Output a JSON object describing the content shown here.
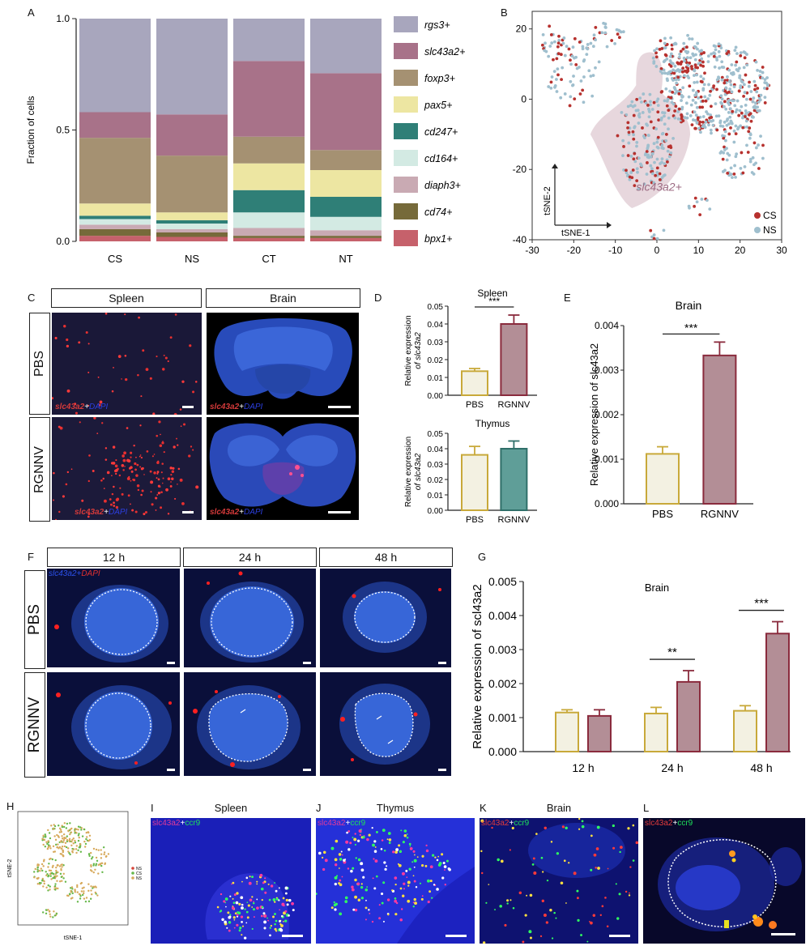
{
  "panel_labels": [
    "A",
    "B",
    "C",
    "D",
    "E",
    "F",
    "G",
    "H",
    "I",
    "J",
    "K",
    "L"
  ],
  "colors": {
    "rgs3": "#a8a6bd",
    "slc43a2": "#a87289",
    "foxp3": "#a59172",
    "pax5": "#ede6a2",
    "cd247": "#2f7f77",
    "cd164": "#d3eae3",
    "diaph3": "#c9aab3",
    "cd74": "#766a3a",
    "bpx1": "#c6616b",
    "cs": "#b7312e",
    "ns": "#9fbfce",
    "pbs_bar": "#c8a93a",
    "rgnnv_bar": "#8a2b3d",
    "pbs_fill": "#f3f1e2",
    "rgnnv_fill": "#b38e96",
    "thymus_rgnnv_fill": "#5f9e98",
    "thymus_rgnnv_edge": "#2f6f69"
  },
  "chart_data": [
    {
      "panel": "A",
      "type": "bar",
      "stacked": true,
      "categories": [
        "CS",
        "NS",
        "CT",
        "NT"
      ],
      "ylabel": "Fraction of cells",
      "ylim": [
        0,
        1.0
      ],
      "yticks": [
        "0.0",
        "0.5",
        "1.0"
      ],
      "series": [
        {
          "name": "bpx1+",
          "values": [
            0.025,
            0.02,
            0.015,
            0.015
          ]
        },
        {
          "name": "cd74+",
          "values": [
            0.03,
            0.02,
            0.01,
            0.01
          ]
        },
        {
          "name": "diaph3+",
          "values": [
            0.02,
            0.015,
            0.035,
            0.025
          ]
        },
        {
          "name": "cd164+",
          "values": [
            0.025,
            0.025,
            0.07,
            0.06
          ]
        },
        {
          "name": "cd247+",
          "values": [
            0.015,
            0.015,
            0.1,
            0.09
          ]
        },
        {
          "name": "pax5+",
          "values": [
            0.055,
            0.035,
            0.12,
            0.12
          ]
        },
        {
          "name": "foxp3+",
          "values": [
            0.295,
            0.255,
            0.12,
            0.09
          ]
        },
        {
          "name": "slc43a2+",
          "values": [
            0.115,
            0.185,
            0.34,
            0.345
          ]
        },
        {
          "name": "rgs3+",
          "values": [
            0.42,
            0.43,
            0.19,
            0.245
          ]
        }
      ],
      "legend": [
        "rgs3+",
        "slc43a2+",
        "foxp3+",
        "pax5+",
        "cd247+",
        "cd164+",
        "diaph3+",
        "cd74+",
        "bpx1+"
      ]
    },
    {
      "panel": "B",
      "type": "scatter",
      "xlim": [
        -30,
        30
      ],
      "ylim": [
        -40,
        25
      ],
      "xticks": [
        "-30",
        "-20",
        "-10",
        "0",
        "10",
        "20",
        "30"
      ],
      "yticks": [
        "20",
        "0",
        "-20",
        "-40"
      ],
      "axis_arrows": [
        "tSNE-1",
        "tSNE-2"
      ],
      "cluster_label": "slc43a2+",
      "series": [
        {
          "name": "CS"
        },
        {
          "name": "NS"
        }
      ]
    },
    {
      "panel": "D-spleen",
      "type": "bar",
      "title": "Spleen",
      "ylabel_line1": "Relative expression",
      "ylabel_line2": "of slc43a2",
      "categories": [
        "PBS",
        "RGNNV"
      ],
      "values": [
        0.0135,
        0.04
      ],
      "errors": [
        0.0015,
        0.005
      ],
      "ylim": [
        0,
        0.05
      ],
      "yticks": [
        "0.00",
        "0.01",
        "0.02",
        "0.03",
        "0.04",
        "0.05"
      ],
      "significance": "***"
    },
    {
      "panel": "D-thymus",
      "type": "bar",
      "title": "Thymus",
      "ylabel_line1": "Relative expression",
      "ylabel_line2": "of slc43a2",
      "categories": [
        "PBS",
        "RGNNV"
      ],
      "values": [
        0.036,
        0.04
      ],
      "errors": [
        0.0055,
        0.005
      ],
      "ylim": [
        0,
        0.05
      ],
      "yticks": [
        "0.00",
        "0.01",
        "0.02",
        "0.03",
        "0.04",
        "0.05"
      ]
    },
    {
      "panel": "E",
      "type": "bar",
      "title": "Brain",
      "ylabel": "Relative expression of slc43a2",
      "categories": [
        "PBS",
        "RGNNV"
      ],
      "values": [
        0.00112,
        0.00333
      ],
      "errors": [
        0.00016,
        0.0003
      ],
      "ylim": [
        0,
        0.004
      ],
      "yticks": [
        "0.000",
        "0.001",
        "0.002",
        "0.003",
        "0.004"
      ],
      "significance": "***"
    },
    {
      "panel": "G",
      "type": "bar",
      "title": "Brain",
      "ylabel": "Relative expression of scl43a2",
      "categories": [
        "12 h",
        "24 h",
        "48 h"
      ],
      "series": [
        {
          "values": [
            0.00115,
            0.00112,
            0.0012
          ],
          "errors": [
            8e-05,
            0.00018,
            0.00015
          ]
        },
        {
          "values": [
            0.00105,
            0.00205,
            0.00347
          ],
          "errors": [
            0.00018,
            0.00033,
            0.00035
          ]
        }
      ],
      "ylim": [
        0,
        0.005
      ],
      "yticks": [
        "0.000",
        "0.001",
        "0.002",
        "0.003",
        "0.004",
        "0.005"
      ],
      "significance": [
        "",
        "**",
        "***"
      ]
    }
  ],
  "panel_c": {
    "col_headers": [
      "Spleen",
      "Brain"
    ],
    "row_headers": [
      "PBS",
      "RGNNV"
    ],
    "stain_gene": "slc43a2",
    "stain_plus": "+",
    "stain_dapi": "DAPI"
  },
  "panel_f": {
    "col_headers": [
      "12 h",
      "24 h",
      "48 h"
    ],
    "row_headers": [
      "PBS",
      "RGNNV"
    ],
    "stain_gene": "slc43a2",
    "stain_plus": "+",
    "stain_dapi": "DAPI"
  },
  "panel_h": {
    "xlabel": "tSNE-1",
    "ylabel": "tSNE-2",
    "legend": [
      "NS",
      "CS",
      "NS"
    ]
  },
  "panel_ijkl": {
    "titles": [
      "Spleen",
      "Thymus",
      "Brain",
      ""
    ],
    "stain_gene": "slc43a2",
    "stain_plus": "+",
    "stain_ccr9": "ccr9"
  }
}
